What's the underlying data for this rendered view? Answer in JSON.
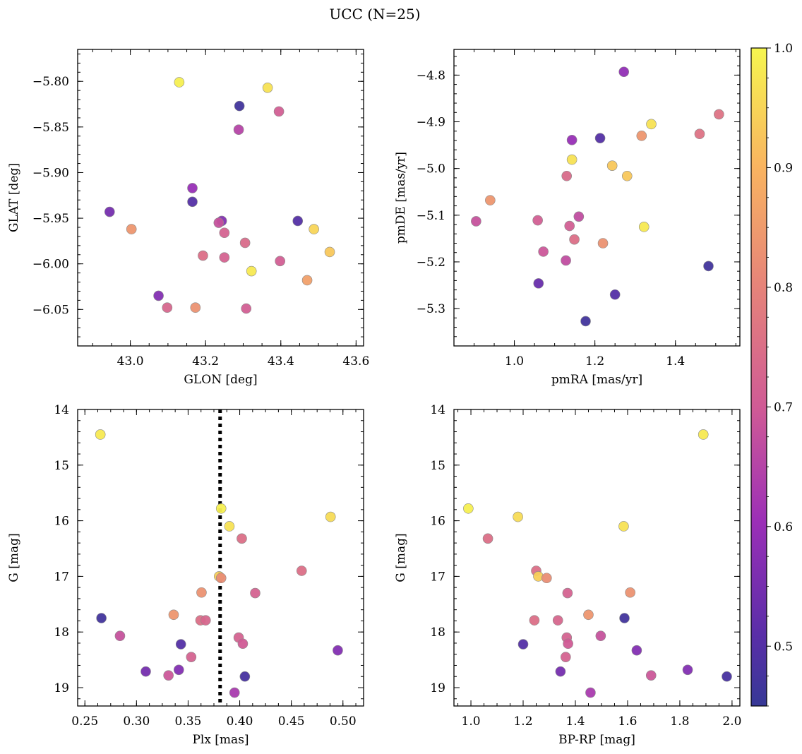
{
  "suptitle": "UCC (N=25)",
  "colorbar": {
    "colormap": "plasma",
    "min": 0.45,
    "max": 1.0,
    "ticks": [
      0.5,
      0.6,
      0.7,
      0.8,
      0.9,
      1.0
    ],
    "ticklabels": [
      "0.5",
      "0.6",
      "0.7",
      "0.8",
      "0.9",
      "1.0"
    ]
  },
  "chart_data": [
    {
      "type": "scatter",
      "xlabel": "GLON [deg]",
      "ylabel": "GLAT [deg]",
      "xlim": [
        42.86,
        43.62
      ],
      "ylim": [
        -6.09,
        -5.765
      ],
      "xticks": [
        43.0,
        43.2,
        43.4,
        43.6
      ],
      "xticklabels": [
        "43.0",
        "43.2",
        "43.4",
        "43.6"
      ],
      "yticks": [
        -5.8,
        -5.85,
        -5.9,
        -5.95,
        -6.0,
        -6.05
      ],
      "yticklabels": [
        "−5.80",
        "−5.85",
        "−5.90",
        "−5.95",
        "−6.00",
        "−6.05"
      ],
      "x": [
        43.13,
        43.365,
        43.29,
        43.395,
        43.288,
        43.165,
        43.165,
        42.945,
        43.003,
        43.243,
        43.235,
        43.25,
        43.445,
        43.488,
        43.305,
        43.53,
        43.193,
        43.25,
        43.322,
        43.398,
        43.47,
        43.075,
        43.098,
        43.173,
        43.308
      ],
      "y": [
        -5.801,
        -5.807,
        -5.827,
        -5.833,
        -5.853,
        -5.917,
        -5.932,
        -5.943,
        -5.962,
        -5.953,
        -5.955,
        -5.966,
        -5.953,
        -5.962,
        -5.977,
        -5.987,
        -5.991,
        -5.993,
        -6.008,
        -5.997,
        -6.018,
        -6.035,
        -6.048,
        -6.048,
        -6.049
      ],
      "c": [
        0.99,
        0.97,
        0.47,
        0.71,
        0.65,
        0.6,
        0.5,
        0.55,
        0.84,
        0.57,
        0.68,
        0.72,
        0.5,
        0.95,
        0.74,
        0.93,
        0.75,
        0.72,
        0.98,
        0.71,
        0.86,
        0.57,
        0.73,
        0.83,
        0.71
      ]
    },
    {
      "type": "scatter",
      "xlabel": "pmRA [mas/yr]",
      "ylabel": "pmDE [mas/yr]",
      "xlim": [
        0.85,
        1.56
      ],
      "ylim": [
        -5.38,
        -4.745
      ],
      "xticks": [
        1.0,
        1.2,
        1.4
      ],
      "xticklabels": [
        "1.0",
        "1.2",
        "1.4"
      ],
      "yticks": [
        -4.8,
        -4.9,
        -5.0,
        -5.1,
        -5.2,
        -5.3
      ],
      "yticklabels": [
        "−4.8",
        "−4.9",
        "−5.0",
        "−5.1",
        "−5.2",
        "−5.3"
      ],
      "x": [
        1.272,
        1.508,
        1.46,
        1.34,
        1.316,
        1.143,
        1.213,
        1.143,
        1.243,
        1.28,
        1.13,
        0.94,
        0.905,
        1.058,
        1.16,
        1.137,
        1.322,
        1.149,
        1.22,
        1.072,
        1.128,
        1.482,
        1.06,
        1.25,
        1.177
      ],
      "y": [
        -4.793,
        -4.884,
        -4.926,
        -4.905,
        -4.93,
        -4.939,
        -4.935,
        -4.981,
        -4.994,
        -5.016,
        -5.016,
        -5.068,
        -5.113,
        -5.111,
        -5.103,
        -5.123,
        -5.125,
        -5.152,
        -5.16,
        -5.178,
        -5.197,
        -5.209,
        -5.246,
        -5.27,
        -5.327
      ],
      "c": [
        0.59,
        0.76,
        0.76,
        0.97,
        0.84,
        0.6,
        0.5,
        0.97,
        0.93,
        0.93,
        0.74,
        0.84,
        0.68,
        0.71,
        0.67,
        0.71,
        0.98,
        0.75,
        0.83,
        0.69,
        0.67,
        0.47,
        0.53,
        0.5,
        0.47
      ]
    },
    {
      "type": "scatter",
      "xlabel": "Plx [mas]",
      "ylabel": "G [mag]",
      "xlim": [
        0.243,
        0.52
      ],
      "ylim": [
        19.33,
        14.0
      ],
      "xticks": [
        0.25,
        0.3,
        0.35,
        0.4,
        0.45,
        0.5
      ],
      "xticklabels": [
        "0.25",
        "0.30",
        "0.35",
        "0.40",
        "0.45",
        "0.50"
      ],
      "yticks": [
        14,
        15,
        16,
        17,
        18,
        19
      ],
      "yticklabels": [
        "14",
        "15",
        "16",
        "17",
        "18",
        "19"
      ],
      "vline": 0.381,
      "x": [
        0.265,
        0.382,
        0.488,
        0.39,
        0.402,
        0.46,
        0.38,
        0.382,
        0.415,
        0.363,
        0.336,
        0.362,
        0.367,
        0.266,
        0.284,
        0.399,
        0.343,
        0.403,
        0.495,
        0.353,
        0.341,
        0.309,
        0.331,
        0.405,
        0.395
      ],
      "y": [
        14.45,
        15.78,
        15.93,
        16.1,
        16.32,
        16.9,
        17.0,
        17.03,
        17.3,
        17.29,
        17.69,
        17.79,
        17.79,
        17.75,
        18.07,
        18.1,
        18.22,
        18.21,
        18.33,
        18.45,
        18.68,
        18.71,
        18.78,
        18.8,
        19.09
      ],
      "c": [
        0.98,
        0.99,
        0.96,
        0.97,
        0.75,
        0.75,
        0.94,
        0.82,
        0.72,
        0.83,
        0.84,
        0.75,
        0.73,
        0.47,
        0.68,
        0.72,
        0.5,
        0.7,
        0.57,
        0.72,
        0.57,
        0.55,
        0.69,
        0.48,
        0.63
      ]
    },
    {
      "type": "scatter",
      "xlabel": "BP-RP [mag]",
      "ylabel": "G [mag]",
      "xlim": [
        0.935,
        2.03
      ],
      "ylim": [
        19.33,
        14.0
      ],
      "xticks": [
        1.0,
        1.2,
        1.4,
        1.6,
        1.8,
        2.0
      ],
      "xticklabels": [
        "1.0",
        "1.2",
        "1.4",
        "1.6",
        "1.8",
        "2.0"
      ],
      "yticks": [
        14,
        15,
        16,
        17,
        18,
        19
      ],
      "yticklabels": [
        "14",
        "15",
        "16",
        "17",
        "18",
        "19"
      ],
      "x": [
        1.89,
        0.99,
        1.18,
        1.585,
        1.065,
        1.25,
        1.258,
        1.29,
        1.37,
        1.61,
        1.45,
        1.243,
        1.333,
        1.588,
        1.497,
        1.367,
        1.2,
        1.372,
        1.635,
        1.363,
        1.83,
        1.343,
        1.69,
        1.98,
        1.458
      ],
      "y": [
        14.45,
        15.78,
        15.93,
        16.1,
        16.32,
        16.9,
        17.0,
        17.03,
        17.3,
        17.29,
        17.69,
        17.79,
        17.79,
        17.75,
        18.07,
        18.1,
        18.22,
        18.21,
        18.33,
        18.45,
        18.68,
        18.71,
        18.78,
        18.8,
        19.09
      ],
      "c": [
        0.98,
        0.99,
        0.96,
        0.97,
        0.75,
        0.75,
        0.94,
        0.82,
        0.72,
        0.83,
        0.84,
        0.75,
        0.73,
        0.47,
        0.68,
        0.72,
        0.5,
        0.7,
        0.57,
        0.72,
        0.57,
        0.55,
        0.69,
        0.48,
        0.63
      ]
    }
  ]
}
